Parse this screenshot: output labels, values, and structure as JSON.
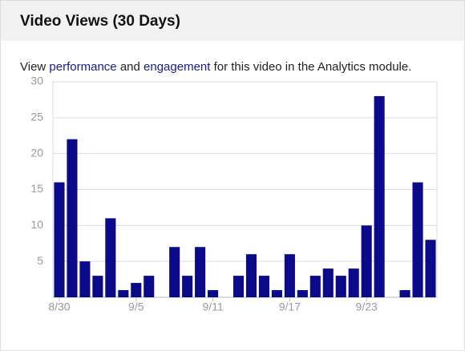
{
  "header": {
    "title": "Video Views (30 Days)"
  },
  "description": {
    "parts": [
      "View",
      "performance",
      "and",
      "engagement",
      "for this video in the Analytics module."
    ]
  },
  "chart_data": {
    "type": "bar",
    "categories": [
      "8/30",
      null,
      null,
      null,
      null,
      null,
      "9/5",
      null,
      null,
      null,
      null,
      null,
      "9/11",
      null,
      null,
      null,
      null,
      null,
      "9/17",
      null,
      null,
      null,
      null,
      null,
      "9/23",
      null,
      null,
      null,
      null,
      null
    ],
    "values": [
      16,
      22,
      5,
      3,
      11,
      1,
      2,
      3,
      0,
      7,
      3,
      7,
      1,
      0,
      3,
      6,
      3,
      1,
      6,
      1,
      3,
      4,
      3,
      4,
      10,
      28,
      0,
      1,
      16,
      8
    ],
    "color": "#0a0a8a",
    "ylim": [
      0,
      30
    ],
    "yticks": [
      5,
      10,
      15,
      20,
      25,
      30
    ],
    "grid": true
  }
}
